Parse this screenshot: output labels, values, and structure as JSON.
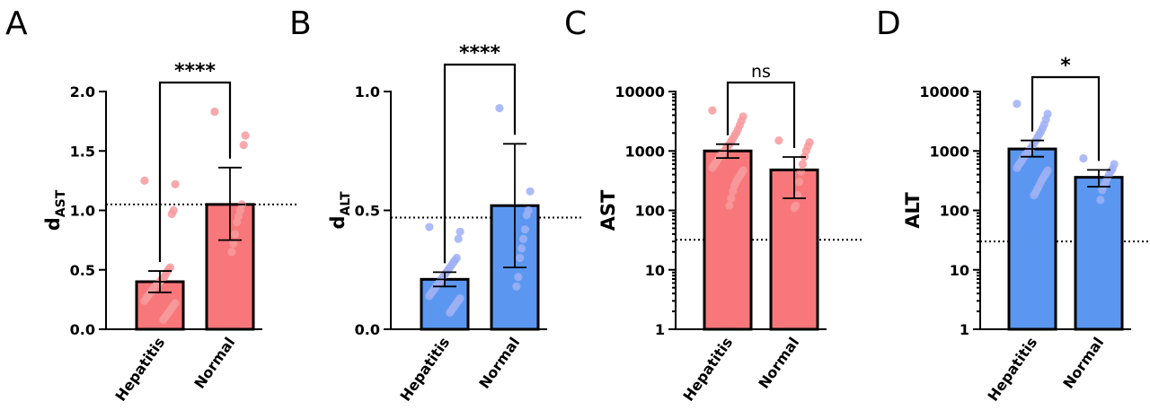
{
  "colors": {
    "red_bar": "#f7777a",
    "red_point": "#f79a9c",
    "blue_bar": "#5b97f0",
    "blue_point": "#9fb0f5"
  },
  "chart_data": [
    {
      "type": "bar",
      "panel_label": "A",
      "ylabel_main": "d",
      "ylabel_sub": "AST",
      "scale": "linear",
      "ylim": [
        0,
        2
      ],
      "yticks": [
        0,
        0.5,
        1,
        1.5,
        2
      ],
      "ytick_labels": [
        "0.0",
        "0.5",
        "1.0",
        "1.5",
        "2.0"
      ],
      "categories": [
        "Hepatitis",
        "Normal"
      ],
      "bar_colors": [
        "#f7777a",
        "#f7777a"
      ],
      "point_colors": [
        "#f79a9c",
        "#f79a9c"
      ],
      "values": [
        0.4,
        1.05
      ],
      "error": [
        [
          0.31,
          0.49
        ],
        [
          0.75,
          1.36
        ]
      ],
      "points": [
        [
          1.25,
          1.22,
          1.0,
          0.97,
          0.52,
          0.5,
          0.48,
          0.45,
          0.43,
          0.42,
          0.4,
          0.38,
          0.37,
          0.36,
          0.34,
          0.32,
          0.3,
          0.28,
          0.26,
          0.24,
          0.22,
          0.2,
          0.18,
          0.16,
          0.14,
          0.12,
          0.1,
          0.08
        ],
        [
          1.83,
          1.63,
          1.55,
          1.05,
          1.0,
          0.95,
          0.9,
          0.8,
          0.72,
          0.65
        ]
      ],
      "reference": 1.05,
      "significance": "****"
    },
    {
      "type": "bar",
      "panel_label": "B",
      "ylabel_main": "d",
      "ylabel_sub": "ALT",
      "scale": "linear",
      "ylim": [
        0,
        1
      ],
      "yticks": [
        0,
        0.5,
        1
      ],
      "ytick_labels": [
        "0.0",
        "0.5",
        "1.0"
      ],
      "categories": [
        "Hepatitis",
        "Normal"
      ],
      "bar_colors": [
        "#5b97f0",
        "#5b97f0"
      ],
      "point_colors": [
        "#9fb0f5",
        "#9fb0f5"
      ],
      "values": [
        0.21,
        0.52
      ],
      "error": [
        [
          0.18,
          0.24
        ],
        [
          0.26,
          0.78
        ]
      ],
      "points": [
        [
          0.43,
          0.41,
          0.38,
          0.3,
          0.29,
          0.28,
          0.27,
          0.26,
          0.25,
          0.24,
          0.23,
          0.22,
          0.21,
          0.2,
          0.19,
          0.18,
          0.17,
          0.16,
          0.15,
          0.14,
          0.13,
          0.12,
          0.11,
          0.1,
          0.09,
          0.08,
          0.07
        ],
        [
          0.93,
          0.58,
          0.5,
          0.48,
          0.42,
          0.38,
          0.34,
          0.3,
          0.22,
          0.18
        ]
      ],
      "reference": 0.47,
      "significance": "****"
    },
    {
      "type": "bar",
      "panel_label": "C",
      "ylabel_main": "AST",
      "ylabel_sub": "",
      "scale": "log",
      "ylim": [
        1,
        10000
      ],
      "yticks": [
        1,
        10,
        100,
        1000,
        10000
      ],
      "ytick_labels": [
        "1",
        "10",
        "100",
        "1000",
        "10000"
      ],
      "categories": [
        "Hepatitis",
        "Normal"
      ],
      "bar_colors": [
        "#f7777a",
        "#f7777a"
      ],
      "point_colors": [
        "#f79a9c",
        "#f79a9c"
      ],
      "values": [
        1000,
        480
      ],
      "error": [
        [
          760,
          1300
        ],
        [
          160,
          790
        ]
      ],
      "points": [
        [
          4800,
          3800,
          3200,
          2700,
          2300,
          2000,
          1800,
          1600,
          1450,
          1300,
          1200,
          1100,
          1000,
          920,
          850,
          780,
          700,
          640,
          580,
          520,
          470,
          420,
          380,
          340,
          300,
          260,
          210,
          160,
          120
        ],
        [
          1500,
          1400,
          1200,
          1000,
          800,
          600,
          450,
          300,
          180,
          120,
          110
        ]
      ],
      "reference": 32,
      "significance": "ns"
    },
    {
      "type": "bar",
      "panel_label": "D",
      "ylabel_main": "ALT",
      "ylabel_sub": "",
      "scale": "log",
      "ylim": [
        1,
        10000
      ],
      "yticks": [
        1,
        10,
        100,
        1000,
        10000
      ],
      "ytick_labels": [
        "1",
        "10",
        "100",
        "1000",
        "10000"
      ],
      "categories": [
        "Hepatitis",
        "Normal"
      ],
      "bar_colors": [
        "#5b97f0",
        "#5b97f0"
      ],
      "point_colors": [
        "#9fb0f5",
        "#9fb0f5"
      ],
      "values": [
        1080,
        360
      ],
      "error": [
        [
          800,
          1500
        ],
        [
          250,
          480
        ]
      ],
      "points": [
        [
          6200,
          4200,
          3400,
          2800,
          2400,
          2100,
          1900,
          1700,
          1500,
          1350,
          1200,
          1100,
          1000,
          920,
          850,
          780,
          700,
          640,
          580,
          520,
          470,
          420,
          380,
          340,
          300,
          260,
          230,
          200,
          180
        ],
        [
          750,
          600,
          500,
          450,
          400,
          350,
          300,
          260,
          220,
          150
        ]
      ],
      "reference": 30,
      "significance": "*"
    }
  ]
}
